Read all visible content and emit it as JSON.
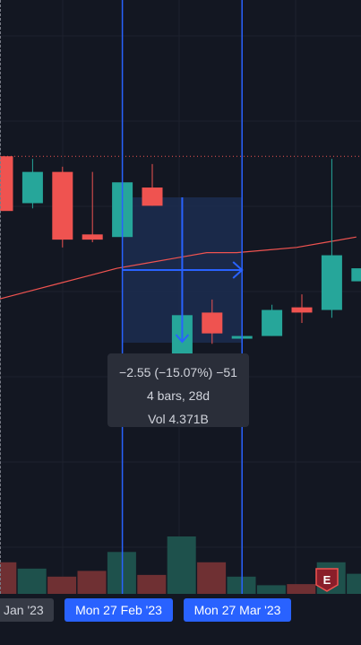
{
  "chart_data": {
    "type": "candlestick",
    "title": "",
    "price_range": [
      -3.6,
      19.2
    ],
    "volume_range": [
      0,
      1.0
    ],
    "candles": [
      {
        "o": 13.2,
        "h": 13.2,
        "l": 11.1,
        "c": 11.1,
        "v": 0.55
      },
      {
        "o": 11.4,
        "h": 13.1,
        "l": 11.2,
        "c": 12.6,
        "v": 0.44
      },
      {
        "o": 12.6,
        "h": 12.8,
        "l": 9.7,
        "c": 10.0,
        "v": 0.3
      },
      {
        "o": 10.2,
        "h": 12.6,
        "l": 9.9,
        "c": 10.0,
        "v": 0.4
      },
      {
        "o": 10.1,
        "h": 12.2,
        "l": 10.0,
        "c": 12.2,
        "v": 0.73
      },
      {
        "o": 12.0,
        "h": 12.9,
        "l": 11.3,
        "c": 11.3,
        "v": 0.33
      },
      {
        "o": 5.6,
        "h": 9.3,
        "l": 4.0,
        "c": 7.1,
        "v": 1.0
      },
      {
        "o": 7.2,
        "h": 7.7,
        "l": 6.0,
        "c": 6.4,
        "v": 0.55
      },
      {
        "o": 6.2,
        "h": 6.6,
        "l": 5.7,
        "c": 6.3,
        "v": 0.3
      },
      {
        "o": 6.3,
        "h": 7.5,
        "l": 6.3,
        "c": 7.3,
        "v": 0.15
      },
      {
        "o": 7.4,
        "h": 7.9,
        "l": 6.8,
        "c": 7.2,
        "v": 0.17
      },
      {
        "o": 7.3,
        "h": 13.1,
        "l": 7.0,
        "c": 9.4,
        "v": 0.55
      },
      {
        "o": 8.4,
        "h": 9.7,
        "l": 7.5,
        "c": 8.9,
        "v": 0.35
      }
    ],
    "moving_average": [
      7.7,
      8.0,
      8.3,
      8.6,
      8.9,
      9.1,
      9.3,
      9.5,
      9.5,
      9.6,
      9.7,
      9.9,
      10.1
    ],
    "last_price_line": 13.2,
    "range_measure": {
      "change": "−2.55 (−15.07%) −51",
      "bars": "4 bars, 28d",
      "volume": "Vol 4.371B"
    },
    "x_axis_labels": {
      "left": "Jan '23",
      "start": "Mon 27 Feb '23",
      "end": "Mon 27 Mar '23"
    },
    "earnings_marker": "E",
    "colors": {
      "background": "#131722",
      "up": "#26a69a",
      "down": "#ef5350",
      "volume_up": "#1e514c",
      "volume_down": "#6f3033",
      "moving_average": "#ef5350",
      "range_line": "#2962ff",
      "range_fill": "#1c2b4e",
      "grid": "#1e222d"
    }
  }
}
